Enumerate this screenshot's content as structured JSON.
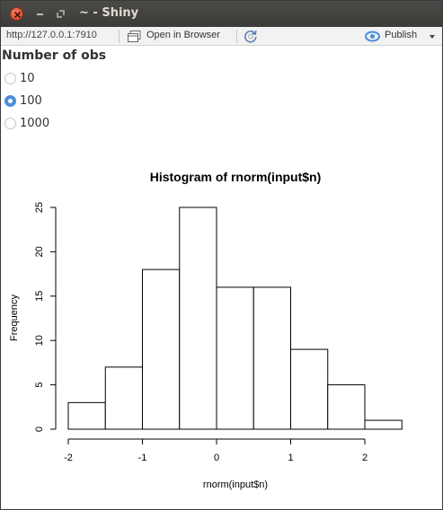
{
  "window": {
    "title": "~ - Shiny",
    "close_icon": "close-icon",
    "minimize_icon": "minimize-icon",
    "maximize_icon": "maximize-icon"
  },
  "toolbar": {
    "url": "http://127.0.0.1:7910",
    "open_in_browser_label": "Open in Browser",
    "open_icon": "open-in-browser-icon",
    "refresh_icon": "refresh-icon",
    "publish_label": "Publish",
    "publish_icon": "publish-icon"
  },
  "control": {
    "label": "Number of obs",
    "options": [
      "10",
      "100",
      "1000"
    ],
    "selected": "100"
  },
  "chart_data": {
    "type": "bar",
    "title": "Histogram of rnorm(input$n)",
    "xlabel": "rnorm(input$n)",
    "ylabel": "Frequency",
    "bins": [
      [
        -2,
        -1.5
      ],
      [
        -1.5,
        -1
      ],
      [
        -1,
        -0.5
      ],
      [
        -0.5,
        0
      ],
      [
        0,
        0.5
      ],
      [
        0.5,
        1
      ],
      [
        1,
        1.5
      ],
      [
        1.5,
        2
      ],
      [
        2,
        2.5
      ]
    ],
    "values": [
      3,
      7,
      18,
      25,
      16,
      16,
      9,
      5,
      1
    ],
    "xticks": [
      "-2",
      "-1",
      "0",
      "1",
      "2"
    ],
    "yticks": [
      "0",
      "5",
      "10",
      "15",
      "20",
      "25"
    ],
    "xlim": [
      -2,
      2.5
    ],
    "ylim": [
      0,
      25
    ],
    "grid": false
  }
}
